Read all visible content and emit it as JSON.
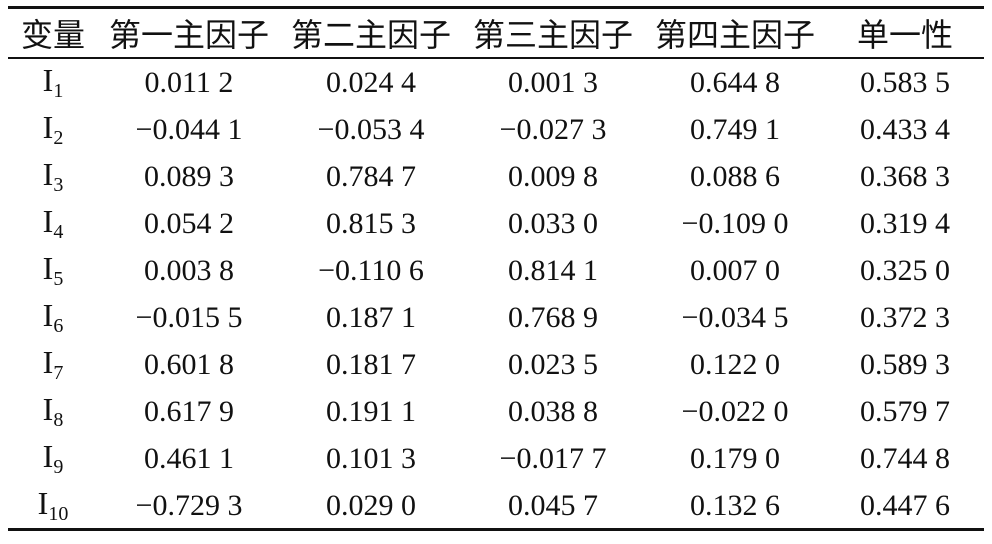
{
  "table": {
    "headers": [
      "变量",
      "第一主因子",
      "第二主因子",
      "第三主因子",
      "第四主因子",
      "单一性"
    ],
    "rows": [
      {
        "var": "I",
        "sub": "1",
        "cells": [
          "0.011 2",
          "0.024 4",
          "0.001 3",
          "0.644 8",
          "0.583 5"
        ]
      },
      {
        "var": "I",
        "sub": "2",
        "cells": [
          "−0.044 1",
          "−0.053 4",
          "−0.027 3",
          "0.749 1",
          "0.433 4"
        ]
      },
      {
        "var": "I",
        "sub": "3",
        "cells": [
          "0.089 3",
          "0.784 7",
          "0.009 8",
          "0.088 6",
          "0.368 3"
        ]
      },
      {
        "var": "I",
        "sub": "4",
        "cells": [
          "0.054 2",
          "0.815 3",
          "0.033 0",
          "−0.109 0",
          "0.319 4"
        ]
      },
      {
        "var": "I",
        "sub": "5",
        "cells": [
          "0.003 8",
          "−0.110 6",
          "0.814 1",
          "0.007 0",
          "0.325 0"
        ]
      },
      {
        "var": "I",
        "sub": "6",
        "cells": [
          "−0.015 5",
          "0.187 1",
          "0.768 9",
          "−0.034 5",
          "0.372 3"
        ]
      },
      {
        "var": "I",
        "sub": "7",
        "cells": [
          "0.601 8",
          "0.181 7",
          "0.023 5",
          "0.122 0",
          "0.589 3"
        ]
      },
      {
        "var": "I",
        "sub": "8",
        "cells": [
          "0.617 9",
          "0.191 1",
          "0.038 8",
          "−0.022 0",
          "0.579 7"
        ]
      },
      {
        "var": "I",
        "sub": "9",
        "cells": [
          "0.461 1",
          "0.101 3",
          "−0.017 7",
          "0.179 0",
          "0.744 8"
        ]
      },
      {
        "var": "I",
        "sub": "10",
        "cells": [
          "−0.729 3",
          "0.029 0",
          "0.045 7",
          "0.132 6",
          "0.447 6"
        ]
      }
    ]
  }
}
